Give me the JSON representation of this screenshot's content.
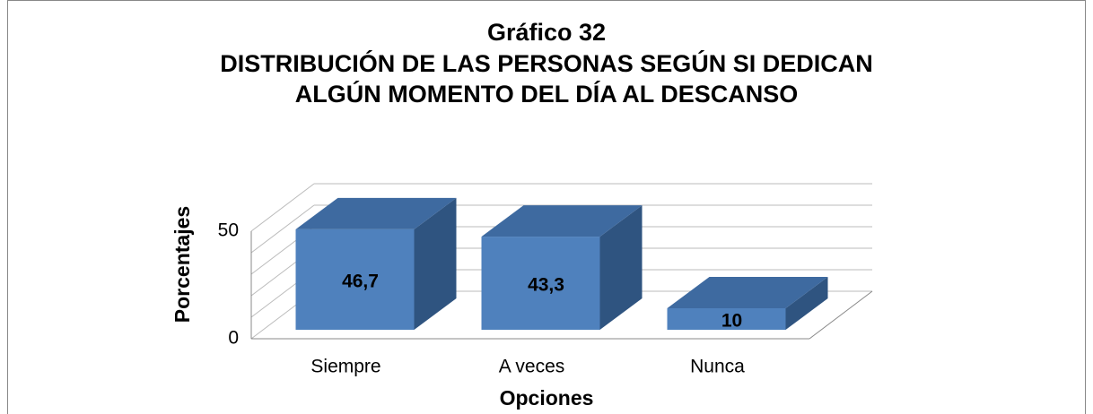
{
  "chart_data": {
    "type": "bar3d",
    "title": [
      "Gráfico 32",
      "DISTRIBUCIÓN DE LAS PERSONAS SEGÚN SI DEDICAN",
      "ALGÚN MOMENTO DEL DÍA AL DESCANSO"
    ],
    "x_label": "Opciones",
    "y_label": "Porcentajes",
    "categories": [
      "Siempre",
      "A veces",
      "Nunca"
    ],
    "values": [
      46.7,
      43.3,
      10
    ],
    "value_labels": [
      "46,7",
      "43,3",
      "10"
    ],
    "color": "#4f81bd",
    "ylim": [
      0,
      50
    ],
    "yticks": [
      0,
      50
    ],
    "minor_yticks": [
      10,
      20,
      30,
      40
    ],
    "grid": true
  }
}
